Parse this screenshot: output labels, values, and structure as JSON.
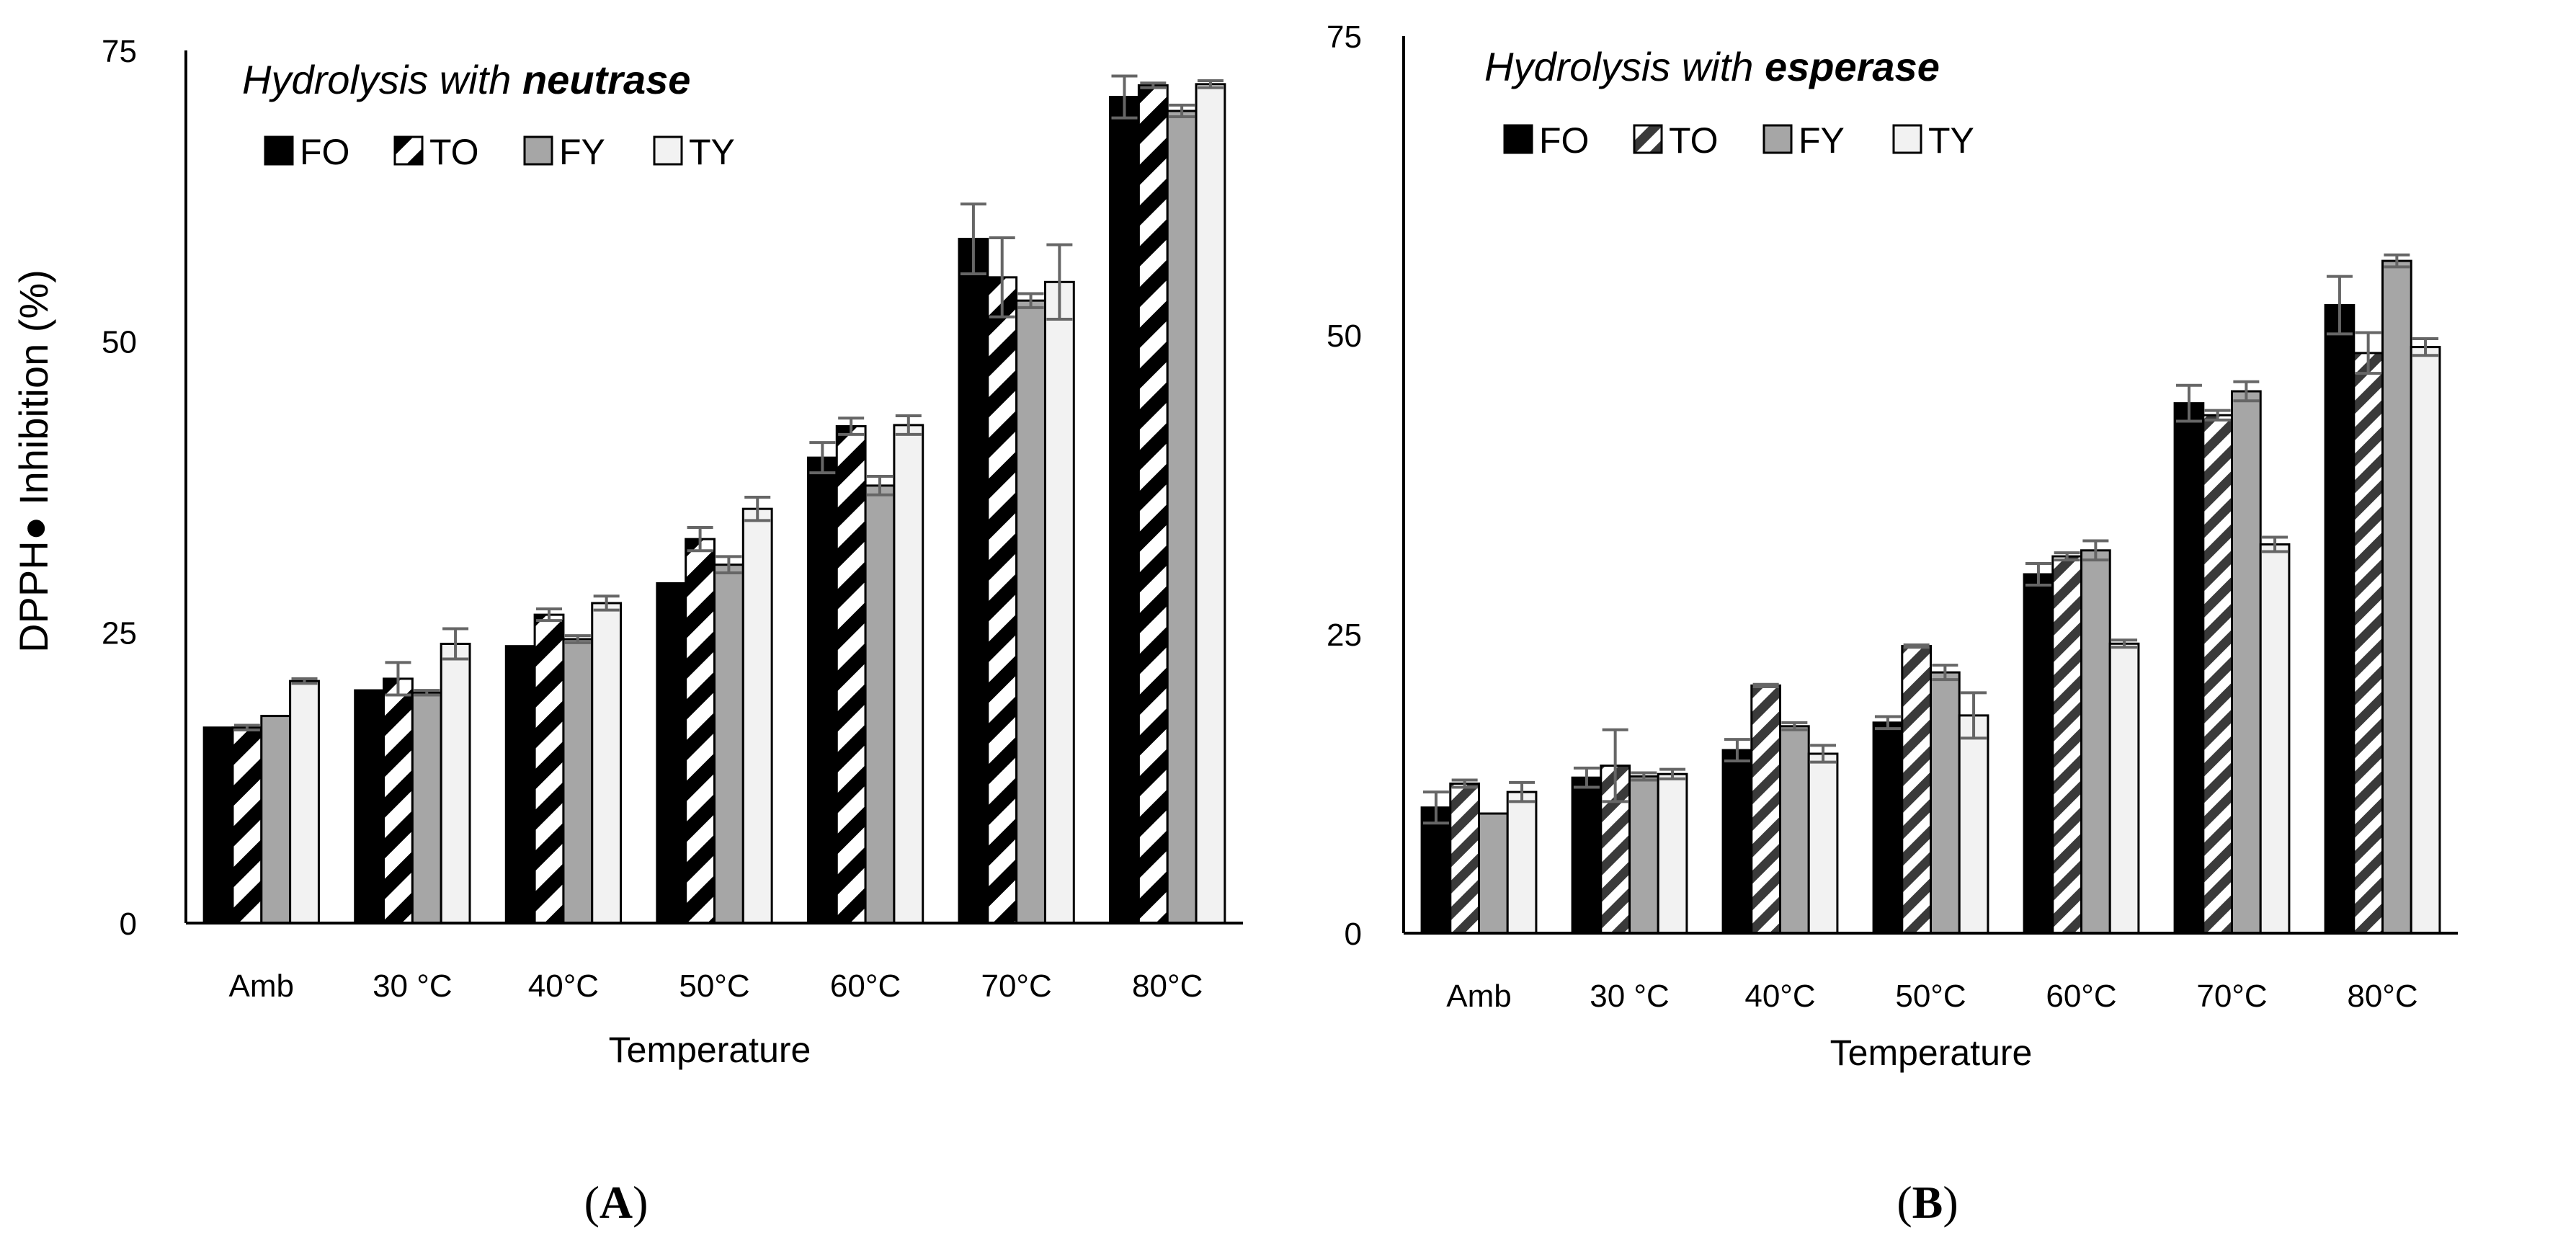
{
  "figure": {
    "y_axis_label": "DPPH● Inhibition  (%)",
    "panel_labels": [
      {
        "open": "(",
        "letter": "A",
        "close": ")"
      },
      {
        "open": "(",
        "letter": "B",
        "close": ")"
      }
    ]
  },
  "legend": [
    "FO",
    "TO",
    "FY",
    "TY"
  ],
  "chart_data": [
    {
      "type": "bar",
      "title_prefix": "Hydrolysis with ",
      "title_enzyme": "neutrase",
      "xlabel": "Temperature",
      "ylabel": "DPPH● Inhibition  (%)",
      "categories": [
        "Amb",
        "30 °C",
        "40°C",
        "50°C",
        "60°C",
        "70°C",
        "80°C"
      ],
      "ylim": [
        0,
        75
      ],
      "yticks": [
        0,
        25,
        50,
        75
      ],
      "grid": false,
      "legend_position": "top-left",
      "series": [
        {
          "name": "FO",
          "values": [
            16.8,
            20.0,
            23.8,
            29.2,
            40.0,
            58.8,
            71.0
          ],
          "errors": [
            0.0,
            0.0,
            0.0,
            0.0,
            1.3,
            3.0,
            1.8
          ]
        },
        {
          "name": "TO",
          "values": [
            16.8,
            21.0,
            26.5,
            33.0,
            42.7,
            55.5,
            72.0
          ],
          "errors": [
            0.2,
            1.4,
            0.5,
            1.0,
            0.7,
            3.4,
            0.2
          ]
        },
        {
          "name": "FY",
          "values": [
            17.8,
            19.8,
            24.4,
            30.8,
            37.6,
            53.5,
            69.8
          ],
          "errors": [
            0.0,
            0.2,
            0.3,
            0.7,
            0.8,
            0.6,
            0.5
          ]
        },
        {
          "name": "TY",
          "values": [
            20.8,
            24.0,
            27.5,
            35.6,
            42.8,
            55.1,
            72.1
          ],
          "errors": [
            0.2,
            1.3,
            0.6,
            1.0,
            0.8,
            3.2,
            0.3
          ]
        }
      ]
    },
    {
      "type": "bar",
      "title_prefix": "Hydrolysis with ",
      "title_enzyme": "esperase",
      "xlabel": "Temperature",
      "ylabel": "",
      "categories": [
        "Amb",
        "30 °C",
        "40°C",
        "50°C",
        "60°C",
        "70°C",
        "80°C"
      ],
      "ylim": [
        0,
        75
      ],
      "yticks": [
        0,
        25,
        50,
        75
      ],
      "grid": false,
      "legend_position": "top-left",
      "series": [
        {
          "name": "FO",
          "values": [
            10.5,
            13.0,
            15.3,
            17.6,
            30.0,
            44.3,
            52.5
          ],
          "errors": [
            1.3,
            0.8,
            0.9,
            0.5,
            0.9,
            1.5,
            2.4
          ]
        },
        {
          "name": "TO",
          "values": [
            12.5,
            14.0,
            20.7,
            24.0,
            31.5,
            43.3,
            48.5
          ],
          "errors": [
            0.3,
            3.0,
            0.1,
            0.1,
            0.3,
            0.4,
            1.7
          ]
        },
        {
          "name": "FY",
          "values": [
            10.0,
            13.1,
            17.3,
            21.8,
            32.0,
            45.3,
            56.2
          ],
          "errors": [
            0.0,
            0.3,
            0.3,
            0.6,
            0.8,
            0.8,
            0.5
          ]
        },
        {
          "name": "TY",
          "values": [
            11.8,
            13.3,
            15.0,
            18.2,
            24.2,
            32.5,
            49.0
          ],
          "errors": [
            0.8,
            0.4,
            0.7,
            1.9,
            0.3,
            0.6,
            0.7
          ]
        }
      ]
    }
  ],
  "style": {
    "colors": {
      "FO": "#000000",
      "TO_stripe": "#000000",
      "TO_stripe_b": "#3a3a3a",
      "TO_background": "#ffffff",
      "FY": "#a6a6a6",
      "TY": "#f2f2f2",
      "bar_outline": "#000000",
      "axis": "#000000",
      "error_bar": "#666666"
    },
    "legend_icons": [
      "solid-black-square-icon",
      "diagonal-stripe-square-icon",
      "gray-square-icon",
      "light-square-icon"
    ]
  }
}
